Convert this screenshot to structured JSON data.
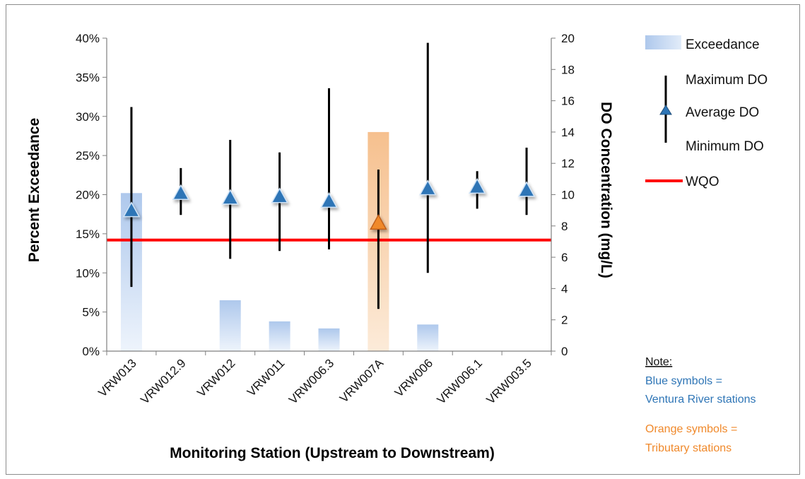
{
  "chart_data": {
    "type": "bar",
    "xlabel": "Monitoring Station (Upstream to Downstream)",
    "ylabel": "Percent Exceedance",
    "y2label": "DO Concentration (mg/L)",
    "ylim": [
      0,
      40
    ],
    "y2lim": [
      0,
      20
    ],
    "y_ticks": [
      "0%",
      "5%",
      "10%",
      "15%",
      "20%",
      "25%",
      "30%",
      "35%",
      "40%"
    ],
    "y2_ticks": [
      "0",
      "2",
      "4",
      "6",
      "8",
      "10",
      "12",
      "14",
      "16",
      "18",
      "20"
    ],
    "categories": [
      "VRW013",
      "VRW012.9",
      "VRW012",
      "VRW011",
      "VRW006.3",
      "VRW007A",
      "VRW006",
      "VRW006.1",
      "VRW003.5"
    ],
    "series": [
      {
        "name": "Exceedance",
        "axis": "left",
        "values": [
          20.2,
          0,
          6.5,
          3.8,
          2.9,
          28.0,
          3.4,
          0,
          0
        ]
      },
      {
        "name": "Maximum DO",
        "axis": "right",
        "values": [
          15.6,
          11.7,
          13.5,
          12.7,
          16.8,
          11.6,
          19.7,
          11.5,
          13.0
        ]
      },
      {
        "name": "Average DO",
        "axis": "right",
        "values": [
          9.0,
          10.1,
          9.8,
          9.9,
          9.6,
          8.2,
          10.4,
          10.5,
          10.3
        ]
      },
      {
        "name": "Minimum DO",
        "axis": "right",
        "values": [
          4.1,
          8.7,
          5.9,
          6.4,
          6.5,
          2.7,
          5.0,
          9.1,
          8.7
        ]
      }
    ],
    "station_type": [
      "main",
      "main",
      "main",
      "main",
      "main",
      "tributary",
      "main",
      "main",
      "main"
    ],
    "wqo": {
      "name": "WQO",
      "value": 7.1
    },
    "colors": {
      "main": "#2e75b6",
      "tributary": "#f0892b",
      "wqo": "#ff0000",
      "range": "#000000"
    },
    "legend_position": "right"
  },
  "note": {
    "title": "Note:",
    "blue_line1": "Blue symbols =",
    "blue_line2": "Ventura River stations",
    "orange_line1": "Orange symbols =",
    "orange_line2": "Tributary stations"
  }
}
